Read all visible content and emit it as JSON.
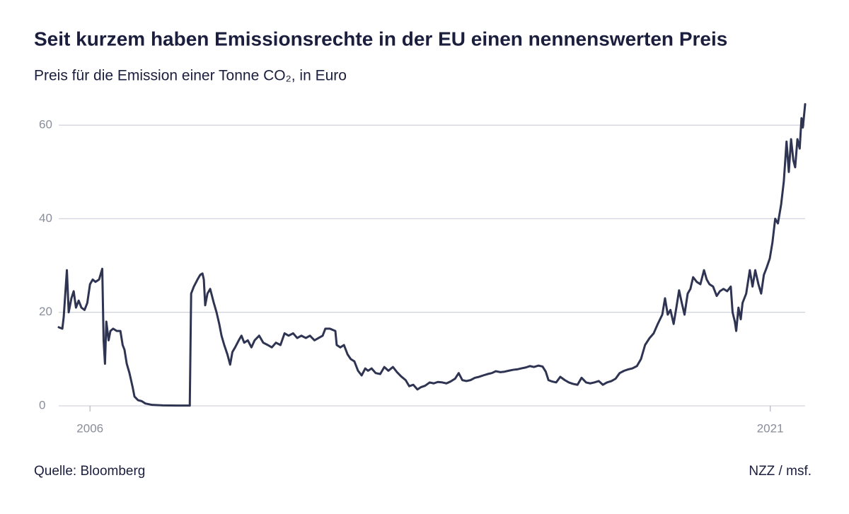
{
  "chart_data": {
    "type": "line",
    "title": "Seit kurzem haben Emissionsrechte in der EU einen nennenswerten Preis",
    "subtitle": "Preis für die Emission einer Tonne CO₂, in Euro",
    "source": "Quelle: Bloomberg",
    "credit": "NZZ / msf.",
    "color": "#2e3451",
    "grid": true,
    "xlim": [
      2005.31,
      2021.77
    ],
    "xticks": [
      2006,
      2021
    ],
    "ylim": [
      0,
      65
    ],
    "yticks": [
      0,
      20,
      40,
      60
    ],
    "x": [
      2005.31,
      2005.39,
      2005.42,
      2005.49,
      2005.53,
      2005.59,
      2005.64,
      2005.69,
      2005.75,
      2005.81,
      2005.88,
      2005.94,
      2006.0,
      2006.06,
      2006.12,
      2006.2,
      2006.27,
      2006.3,
      2006.33,
      2006.36,
      2006.41,
      2006.45,
      2006.51,
      2006.59,
      2006.67,
      2006.72,
      2006.76,
      2006.81,
      2006.87,
      2006.94,
      2006.98,
      2007.06,
      2007.14,
      2007.22,
      2007.37,
      2007.61,
      2007.92,
      2008.2,
      2008.23,
      2008.29,
      2008.37,
      2008.43,
      2008.48,
      2008.51,
      2008.54,
      2008.59,
      2008.65,
      2008.73,
      2008.79,
      2008.85,
      2008.9,
      2008.96,
      2009.03,
      2009.09,
      2009.14,
      2009.2,
      2009.28,
      2009.34,
      2009.4,
      2009.48,
      2009.56,
      2009.63,
      2009.73,
      2009.82,
      2009.92,
      2010.01,
      2010.1,
      2010.2,
      2010.29,
      2010.38,
      2010.48,
      2010.57,
      2010.66,
      2010.76,
      2010.85,
      2010.95,
      2011.04,
      2011.13,
      2011.19,
      2011.29,
      2011.41,
      2011.44,
      2011.52,
      2011.6,
      2011.68,
      2011.75,
      2011.83,
      2011.91,
      2011.99,
      2012.07,
      2012.13,
      2012.21,
      2012.3,
      2012.4,
      2012.49,
      2012.58,
      2012.68,
      2012.77,
      2012.86,
      2012.96,
      2013.04,
      2013.13,
      2013.22,
      2013.3,
      2013.39,
      2013.49,
      2013.58,
      2013.67,
      2013.77,
      2013.86,
      2013.95,
      2014.05,
      2014.13,
      2014.21,
      2014.3,
      2014.39,
      2014.49,
      2014.58,
      2014.67,
      2014.77,
      2014.86,
      2014.95,
      2015.05,
      2015.14,
      2015.23,
      2015.33,
      2015.42,
      2015.51,
      2015.61,
      2015.7,
      2015.79,
      2015.89,
      2015.98,
      2016.05,
      2016.11,
      2016.19,
      2016.28,
      2016.37,
      2016.47,
      2016.56,
      2016.65,
      2016.75,
      2016.84,
      2016.94,
      2017.03,
      2017.12,
      2017.22,
      2017.31,
      2017.4,
      2017.5,
      2017.59,
      2017.68,
      2017.78,
      2017.87,
      2017.96,
      2018.06,
      2018.15,
      2018.24,
      2018.34,
      2018.43,
      2018.52,
      2018.62,
      2018.68,
      2018.74,
      2018.8,
      2018.87,
      2018.93,
      2018.99,
      2019.05,
      2019.11,
      2019.18,
      2019.24,
      2019.3,
      2019.38,
      2019.46,
      2019.54,
      2019.6,
      2019.66,
      2019.74,
      2019.82,
      2019.89,
      2019.97,
      2020.05,
      2020.13,
      2020.17,
      2020.22,
      2020.25,
      2020.3,
      2020.35,
      2020.39,
      2020.47,
      2020.55,
      2020.61,
      2020.67,
      2020.74,
      2020.8,
      2020.86,
      2020.92,
      2020.99,
      2021.05,
      2021.11,
      2021.17,
      2021.24,
      2021.3,
      2021.36,
      2021.41,
      2021.46,
      2021.51,
      2021.55,
      2021.6,
      2021.65,
      2021.69,
      2021.72,
      2021.77
    ],
    "values": [
      16.8,
      16.5,
      19,
      29,
      20,
      23,
      24.5,
      21,
      22.5,
      21,
      20.5,
      22,
      26,
      27,
      26.5,
      27,
      29.3,
      14,
      9,
      18,
      14,
      16,
      16.5,
      16,
      16,
      13,
      12,
      9,
      7,
      4,
      2,
      1.2,
      1,
      0.5,
      0.2,
      0.1,
      0.05,
      0.05,
      24,
      25.5,
      27,
      28,
      28.3,
      27,
      21.5,
      24,
      25,
      22,
      20,
      17.5,
      15,
      13,
      11,
      8.8,
      11.5,
      12.5,
      14,
      15,
      13.5,
      14,
      12.5,
      14,
      15,
      13.5,
      13,
      12.5,
      13.5,
      13,
      15.5,
      15,
      15.5,
      14.5,
      15,
      14.5,
      15,
      14,
      14.5,
      15,
      16.5,
      16.5,
      16,
      13,
      12.5,
      13,
      11,
      10,
      9.5,
      7.5,
      6.5,
      8,
      7.5,
      8,
      7,
      6.8,
      8.3,
      7.5,
      8.3,
      7.2,
      6.3,
      5.5,
      4.2,
      4.5,
      3.5,
      4,
      4.3,
      5,
      4.8,
      5.1,
      5,
      4.8,
      5.2,
      5.8,
      7,
      5.5,
      5.3,
      5.5,
      6,
      6.2,
      6.5,
      6.8,
      7,
      7.4,
      7.2,
      7.3,
      7.5,
      7.7,
      7.8,
      8,
      8.2,
      8.5,
      8.3,
      8.6,
      8.4,
      7.3,
      5.5,
      5.2,
      5,
      6.2,
      5.5,
      5,
      4.7,
      4.5,
      6,
      5,
      4.8,
      5,
      5.3,
      4.5,
      5,
      5.3,
      5.8,
      7,
      7.5,
      7.8,
      8,
      8.5,
      10,
      13,
      14.5,
      15.5,
      17.5,
      19.5,
      23,
      19.5,
      20.5,
      17.5,
      21,
      24.7,
      22,
      19.5,
      24,
      25,
      27.5,
      26.5,
      26,
      29,
      27,
      26,
      25.5,
      23.5,
      24.5,
      25,
      24.5,
      25.5,
      20,
      18,
      16,
      21,
      18.5,
      22,
      24,
      29,
      25.5,
      29,
      26,
      24,
      28,
      29.5,
      31.5,
      35,
      40,
      39,
      43,
      48,
      56.5,
      50,
      57,
      52.5,
      51,
      57,
      55,
      61.5,
      59.5,
      64.5
    ]
  }
}
